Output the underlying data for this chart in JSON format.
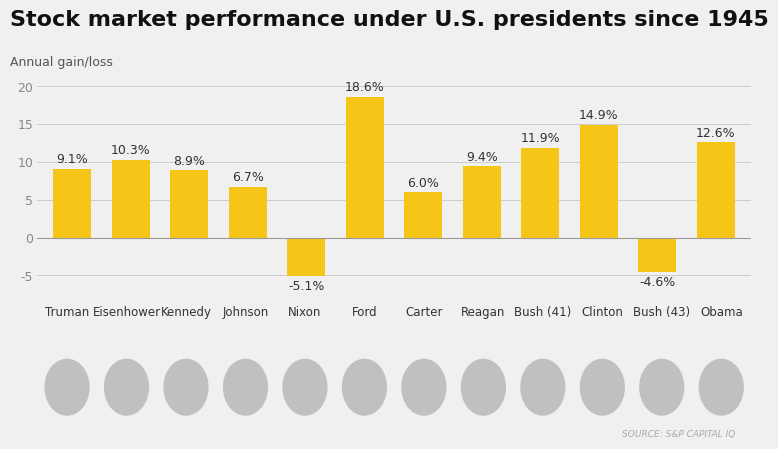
{
  "title": "Stock market performance under U.S. presidents since 1945",
  "subtitle": "Annual gain/loss",
  "categories": [
    "Truman",
    "Eisenhower",
    "Kennedy",
    "Johnson",
    "Nixon",
    "Ford",
    "Carter",
    "Reagan",
    "Bush (41)",
    "Clinton",
    "Bush (43)",
    "Obama"
  ],
  "values": [
    9.1,
    10.3,
    8.9,
    6.7,
    -5.1,
    18.6,
    6.0,
    9.4,
    11.9,
    14.9,
    -4.6,
    12.6
  ],
  "labels": [
    "9.1%",
    "10.3%",
    "8.9%",
    "6.7%",
    "-5.1%",
    "18.6%",
    "6.0%",
    "9.4%",
    "11.9%",
    "14.9%",
    "-4.6%",
    "12.6%"
  ],
  "bar_color": "#F5C518",
  "background_color": "#F0F0F0",
  "title_fontsize": 16,
  "subtitle_fontsize": 9,
  "label_fontsize": 9,
  "tick_fontsize": 9,
  "category_fontsize": 8.5,
  "ylim": [
    -7,
    22
  ],
  "yticks": [
    -5,
    0,
    5,
    10,
    15,
    20
  ],
  "source_text": "SOURCE: S&P CAPITAL IQ"
}
